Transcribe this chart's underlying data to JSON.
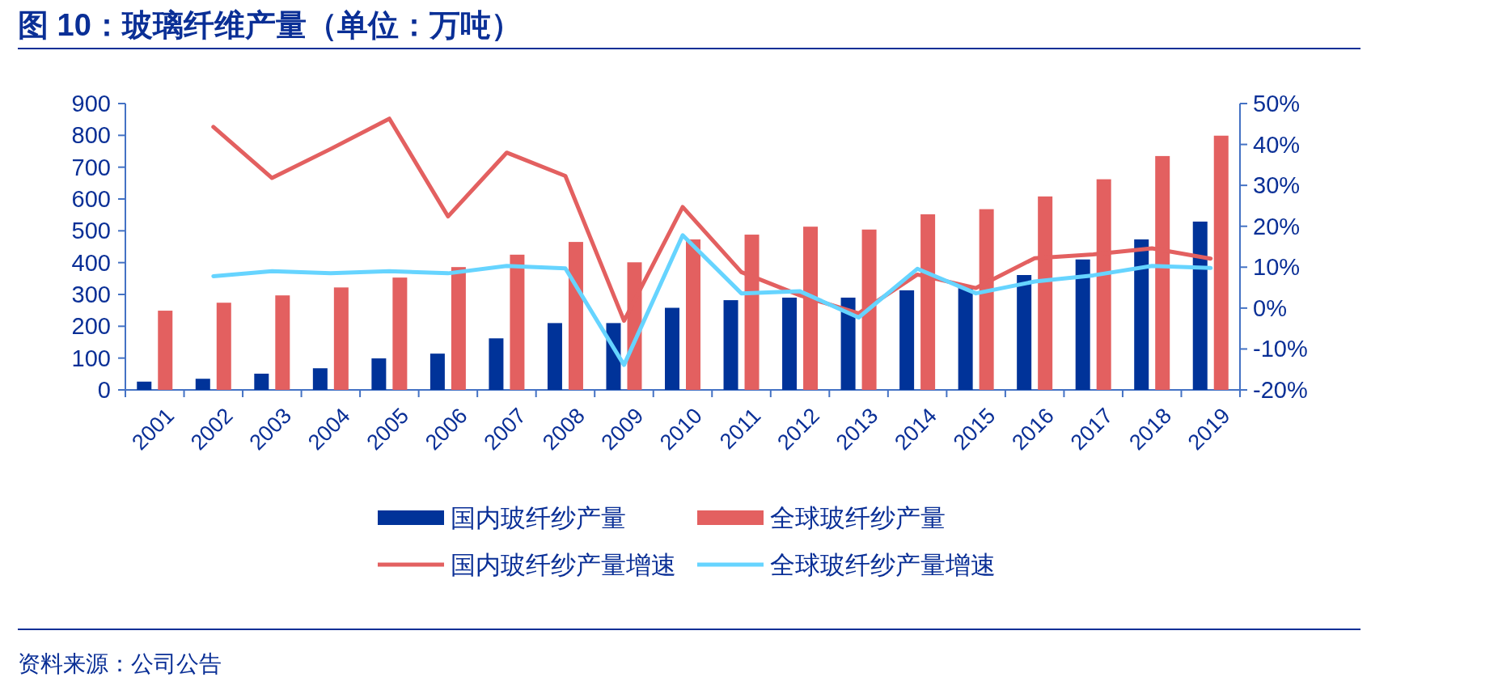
{
  "chart_data": {
    "type": "bar",
    "title": "图 10：玻璃纤维产量（单位：万吨）",
    "annotations": [
      "资料来源：公司公告"
    ],
    "categories": [
      "2001",
      "2002",
      "2003",
      "2004",
      "2005",
      "2006",
      "2007",
      "2008",
      "2009",
      "2010",
      "2011",
      "2012",
      "2013",
      "2014",
      "2015",
      "2016",
      "2017",
      "2018",
      "2019"
    ],
    "series": [
      {
        "name": "国内玻纤纱产量",
        "color": "#003399",
        "values": [
          26,
          35,
          51,
          68,
          99,
          114,
          162,
          210,
          210,
          258,
          282,
          290,
          290,
          313,
          320,
          361,
          410,
          473,
          529
        ]
      },
      {
        "name": "全球玻纤纱产量",
        "color": "#e36060",
        "values": [
          249,
          274,
          297,
          322,
          353,
          386,
          425,
          465,
          401,
          473,
          488,
          513,
          504,
          552,
          568,
          608,
          662,
          735,
          799
        ]
      },
      {
        "name": "国内玻纤纱产量增速",
        "type": "line",
        "axis": "y2",
        "color": "#e36060",
        "values": [
          null,
          44.3,
          31.8,
          38.9,
          46.3,
          22.4,
          38,
          32.3,
          -3.1,
          24.7,
          8.8,
          3.1,
          -1.3,
          8.2,
          4.9,
          12.2,
          13.1,
          14.6,
          12.1
        ]
      },
      {
        "name": "全球玻纤纱产量增速",
        "type": "line",
        "axis": "y2",
        "color": "#66d4ff",
        "values": [
          null,
          7.8,
          9.0,
          8.5,
          9.0,
          8.5,
          10.3,
          9.7,
          -13.9,
          17.8,
          3.6,
          4.1,
          -2.3,
          9.6,
          3.6,
          6.5,
          8.0,
          10.3,
          9.8
        ]
      }
    ],
    "ylim": [
      0,
      900
    ],
    "yticks": [
      0,
      100,
      200,
      300,
      400,
      500,
      600,
      700,
      800,
      900
    ],
    "y2lim": [
      -20,
      50
    ],
    "y2ticks": [
      {
        "value": -20,
        "label": "-20%"
      },
      {
        "value": -10,
        "label": "-10%"
      },
      {
        "value": 0,
        "label": "0%"
      },
      {
        "value": 10,
        "label": "10%"
      },
      {
        "value": 20,
        "label": "20%"
      },
      {
        "value": 30,
        "label": "30%"
      },
      {
        "value": 40,
        "label": "40%"
      },
      {
        "value": 50,
        "label": "50%"
      }
    ],
    "grid": false,
    "legend": "bottom",
    "line_style": "solid"
  }
}
